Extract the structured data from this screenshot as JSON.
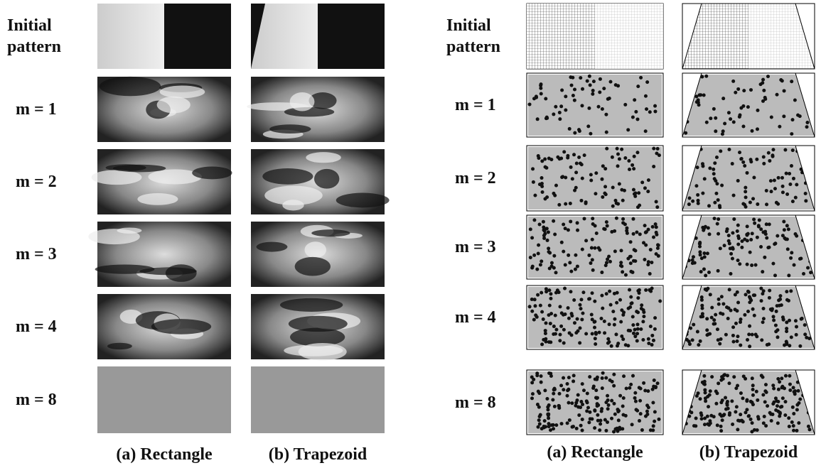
{
  "panels": [
    {
      "row_labels": [
        "Initial pattern",
        "m = 1",
        "m = 2",
        "m = 3",
        "m = 4",
        "m = 8"
      ],
      "column_labels": [
        "(a) Rectangle",
        "(b) Trapezoid"
      ]
    },
    {
      "row_labels": [
        "Initial pattern",
        "m = 1",
        "m = 2",
        "m = 3",
        "m = 4",
        "m = 8"
      ],
      "column_labels": [
        "(a) Rectangle",
        "(b) Trapezoid"
      ]
    }
  ]
}
